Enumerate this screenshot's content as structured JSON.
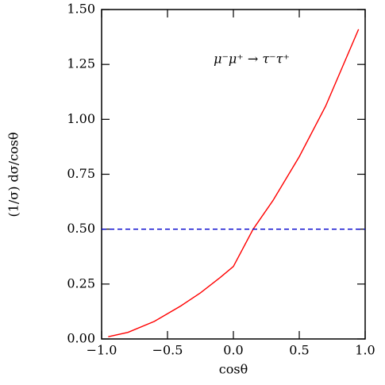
{
  "chart_data": {
    "type": "line",
    "annotation": "μ⁻μ⁺ → τ⁻τ⁺",
    "xlabel": "cosθ",
    "ylabel": "(1/σ)  dσ/cosθ",
    "xlim": [
      -1,
      1
    ],
    "ylim": [
      0,
      1.5
    ],
    "xticks": [
      {
        "value": -1,
        "label": "−1.0"
      },
      {
        "value": -0.5,
        "label": "−0.5"
      },
      {
        "value": 0,
        "label": "0.0"
      },
      {
        "value": 0.5,
        "label": "0.5"
      },
      {
        "value": 1,
        "label": "1.0"
      }
    ],
    "yticks": [
      {
        "value": 0,
        "label": "0.00"
      },
      {
        "value": 0.25,
        "label": "0.25"
      },
      {
        "value": 0.5,
        "label": "0.50"
      },
      {
        "value": 0.75,
        "label": "0.75"
      },
      {
        "value": 1,
        "label": "1.00"
      },
      {
        "value": 1.25,
        "label": "1.25"
      },
      {
        "value": 1.5,
        "label": "1.50"
      }
    ],
    "series": [
      {
        "color": "#ff0000",
        "dashed": false,
        "x": [
          -0.95,
          -0.8,
          -0.6,
          -0.4,
          -0.25,
          -0.1,
          0,
          0.15,
          0.3,
          0.5,
          0.7,
          0.95
        ],
        "values": [
          0.01,
          0.03,
          0.08,
          0.15,
          0.21,
          0.28,
          0.33,
          0.5,
          0.63,
          0.83,
          1.06,
          1.41
        ]
      },
      {
        "color": "#0000cc",
        "dashed": true,
        "x": [
          -1,
          1
        ],
        "values": [
          0.5,
          0.5
        ]
      }
    ]
  }
}
